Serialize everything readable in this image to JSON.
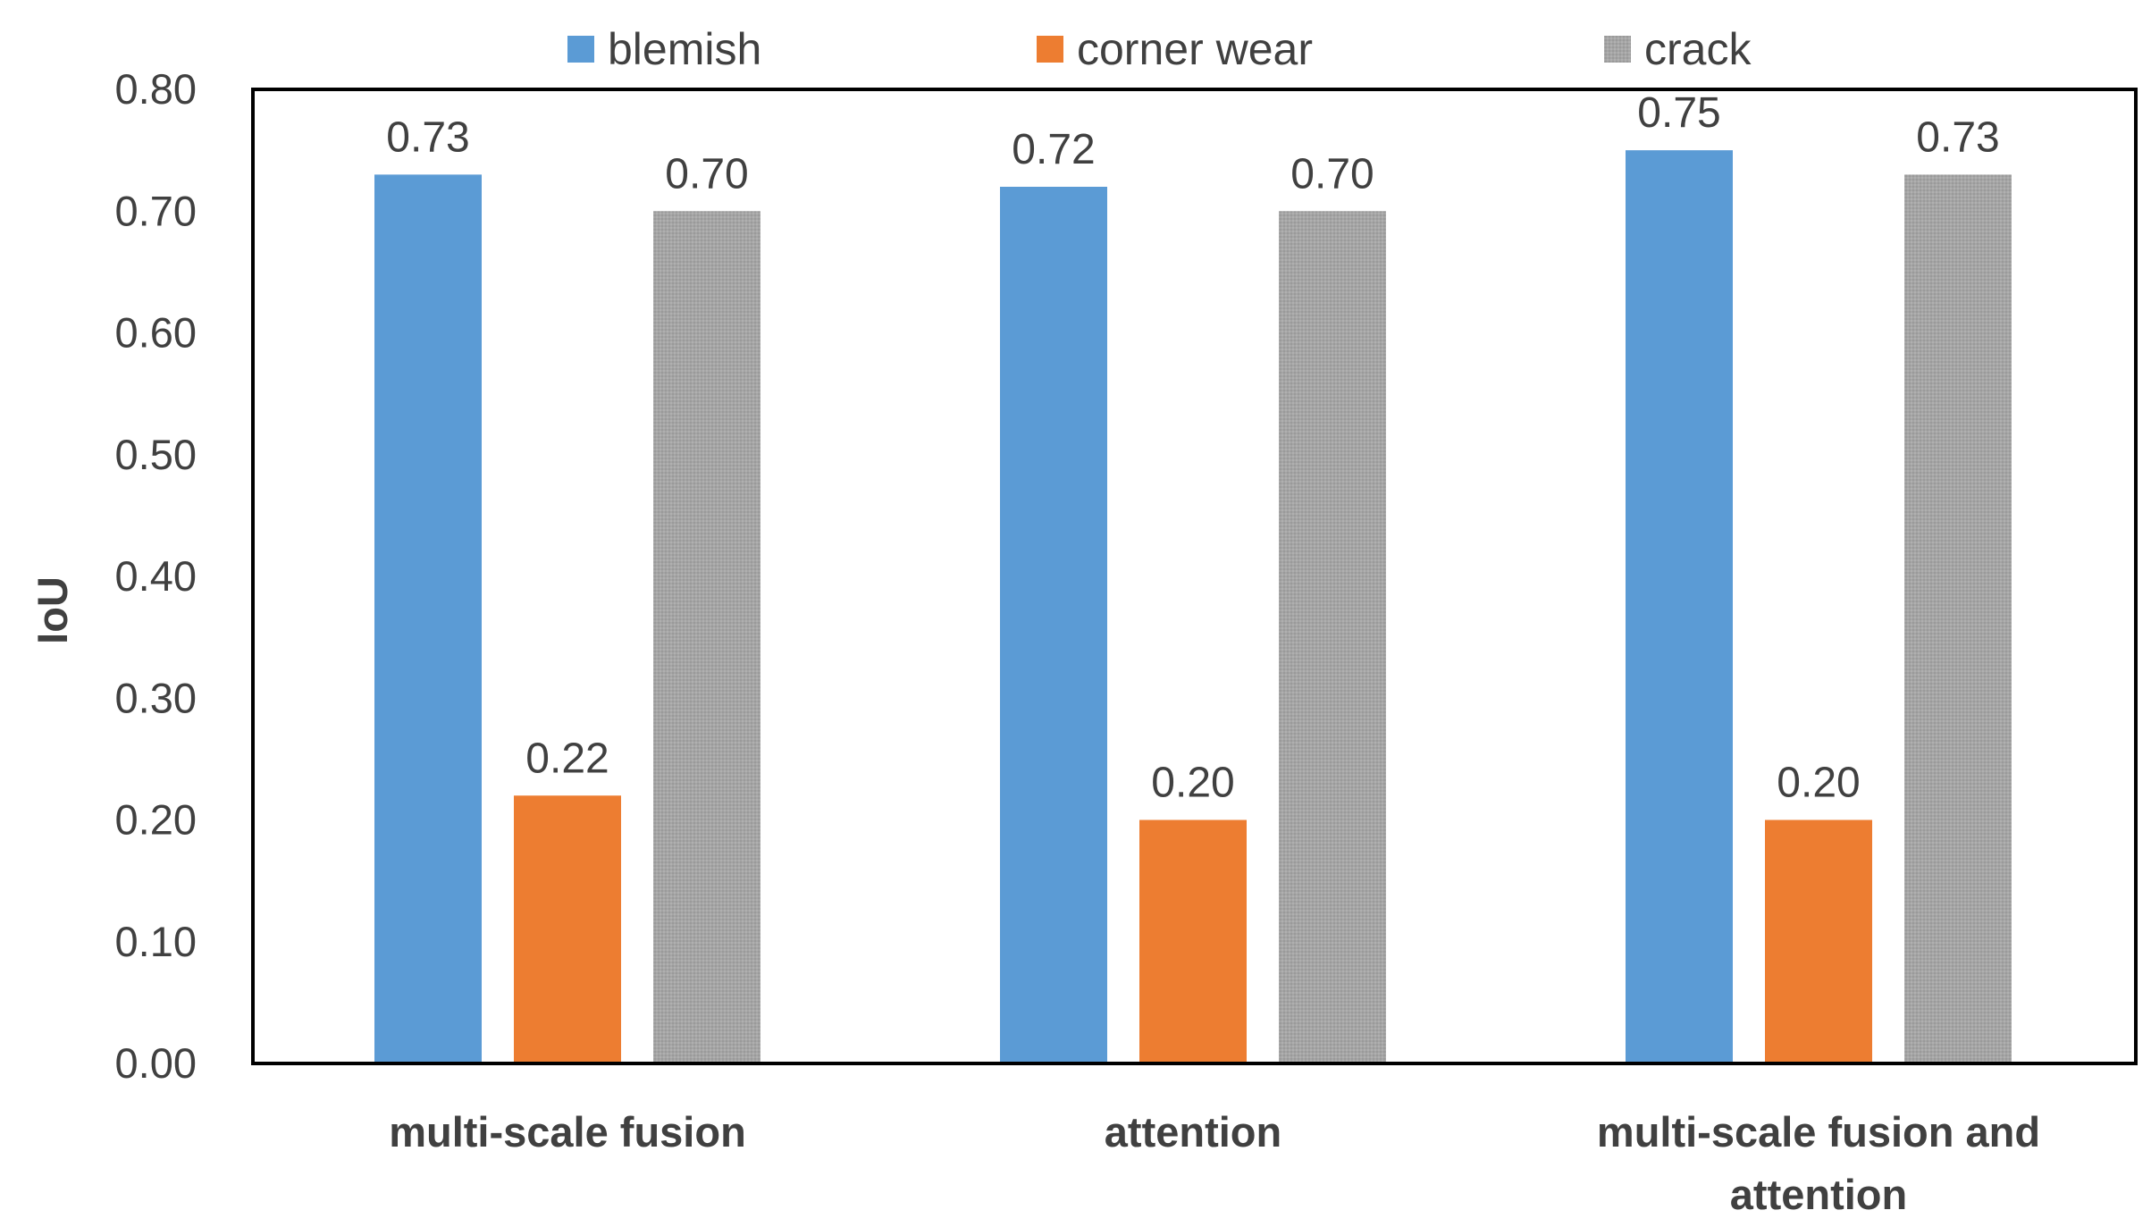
{
  "chart_data": {
    "type": "bar",
    "title": "",
    "xlabel": "",
    "ylabel": "IoU",
    "ylim": [
      0,
      0.8
    ],
    "yticks": [
      "0.00",
      "0.10",
      "0.20",
      "0.30",
      "0.40",
      "0.50",
      "0.60",
      "0.70",
      "0.80"
    ],
    "categories": [
      [
        "multi-scale fusion"
      ],
      [
        "attention"
      ],
      [
        "multi-scale fusion and",
        "attention"
      ]
    ],
    "series": [
      {
        "name": "blemish",
        "color": "#5B9BD5",
        "values": [
          0.73,
          0.72,
          0.75
        ],
        "labels": [
          "0.73",
          "0.72",
          "0.75"
        ]
      },
      {
        "name": "corner wear",
        "color": "#ED7D31",
        "values": [
          0.22,
          0.2,
          0.2
        ],
        "labels": [
          "0.22",
          "0.20",
          "0.20"
        ]
      },
      {
        "name": "crack",
        "color": "#A5A5A5",
        "values": [
          0.7,
          0.7,
          0.73
        ],
        "labels": [
          "0.70",
          "0.70",
          "0.73"
        ]
      }
    ],
    "grid": false,
    "legend": "top-center"
  }
}
